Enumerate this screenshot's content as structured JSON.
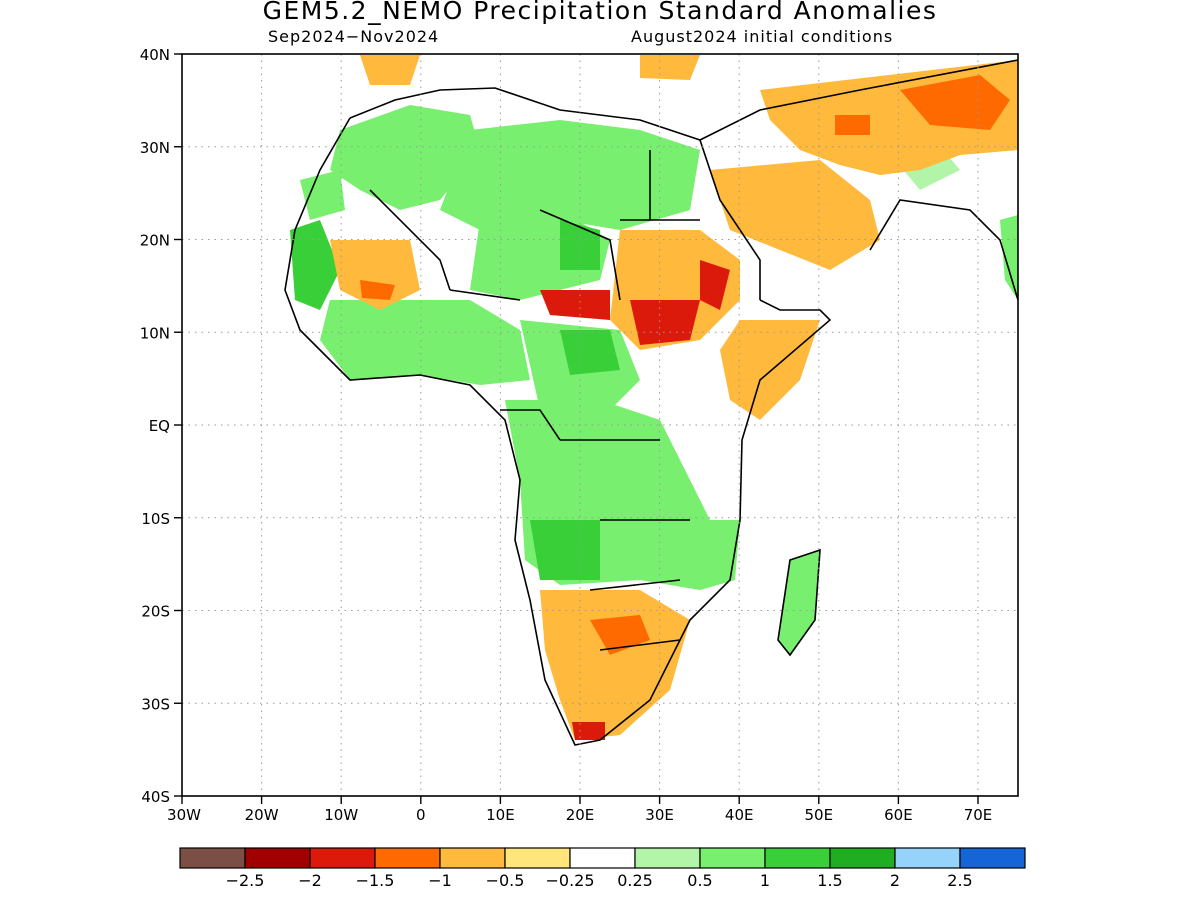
{
  "title": "GEM5.2_NEMO Precipitation Standard Anomalies",
  "period": "Sep2024−Nov2024",
  "init": "August2024 initial conditions",
  "lat_labels": [
    "40N",
    "30N",
    "20N",
    "10N",
    "EQ",
    "10S",
    "20S",
    "30S",
    "40S"
  ],
  "lon_labels": [
    "30W",
    "20W",
    "10W",
    "0",
    "10E",
    "20E",
    "30E",
    "40E",
    "50E",
    "60E",
    "70E"
  ],
  "colorbar": {
    "colors": [
      "#7b4f45",
      "#a10000",
      "#dc1a0b",
      "#ff6a00",
      "#ffb93c",
      "#ffe57a",
      "#ffffff",
      "#b3f5a8",
      "#78ef6e",
      "#38cf39",
      "#1fae22",
      "#96d3fb",
      "#1565d6"
    ],
    "labels": [
      "−2.5",
      "−2",
      "−1.5",
      "−1",
      "−0.5",
      "−0.25",
      "0.25",
      "0.5",
      "1",
      "1.5",
      "2",
      "2.5"
    ]
  },
  "map_extent": {
    "lon": [
      -30,
      75
    ],
    "lat": [
      -40,
      40
    ]
  }
}
